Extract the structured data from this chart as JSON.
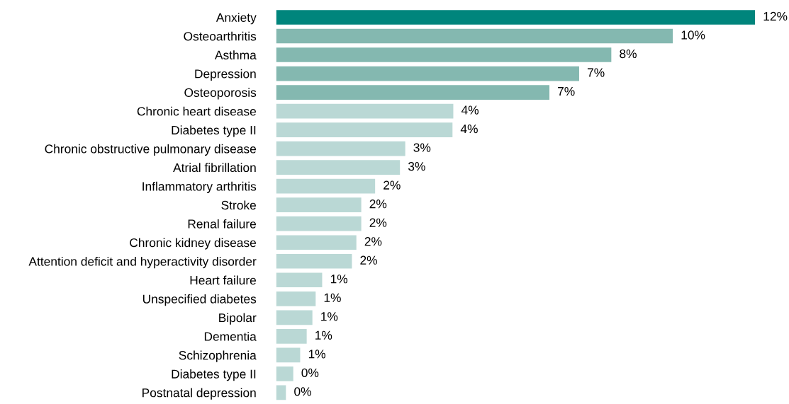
{
  "chart_data": {
    "type": "bar",
    "orientation": "horizontal",
    "categories": [
      "Anxiety",
      "Osteoarthritis",
      "Asthma",
      "Depression",
      "Osteoporosis",
      "Chronic heart disease",
      "Diabetes type II",
      "Chronic obstructive pulmonary disease",
      "Atrial fibrillation",
      "Inflammatory arthritis",
      "Stroke",
      "Renal failure",
      "Chronic kidney disease",
      "Attention deficit and hyperactivity disorder",
      "Heart failure",
      "Unspecified diabetes",
      "Bipolar",
      "Dementia",
      "Schizophrenia",
      "Diabetes type II",
      "Postnatal depression"
    ],
    "values": [
      11.76,
      9.74,
      8.23,
      7.44,
      6.71,
      4.35,
      4.33,
      3.17,
      3.04,
      2.43,
      2.09,
      2.09,
      1.97,
      1.86,
      1.13,
      0.97,
      0.89,
      0.75,
      0.59,
      0.42,
      0.24
    ],
    "value_labels": [
      "12%",
      "10%",
      "8%",
      "7%",
      "7%",
      "4%",
      "4%",
      "3%",
      "3%",
      "2%",
      "2%",
      "2%",
      "2%",
      "2%",
      "1%",
      "1%",
      "1%",
      "1%",
      "1%",
      "0%",
      "0%"
    ],
    "colors": [
      "#00857c",
      "#84b8b0",
      "#84b8b0",
      "#84b8b0",
      "#84b8b0",
      "#bad8d5",
      "#bad8d5",
      "#bad8d5",
      "#bad8d5",
      "#bad8d5",
      "#bad8d5",
      "#bad8d5",
      "#bad8d5",
      "#bad8d5",
      "#bad8d5",
      "#bad8d5",
      "#bad8d5",
      "#bad8d5",
      "#bad8d5",
      "#bad8d5",
      "#bad8d5"
    ]
  }
}
